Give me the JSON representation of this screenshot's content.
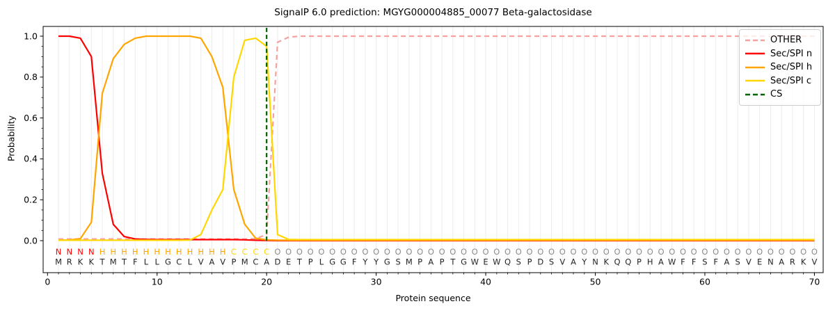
{
  "chart_data": {
    "type": "line",
    "title": "SignalP 6.0 prediction: MGYG000004885_00077 Beta-galactosidase",
    "xlabel": "Protein sequence",
    "ylabel": "Probability",
    "x_start": 1,
    "x_ticks": [
      0,
      10,
      20,
      30,
      40,
      50,
      60,
      70
    ],
    "y_ticks": [
      "0.0",
      "0.2",
      "0.4",
      "0.6",
      "0.8",
      "1.0"
    ],
    "xlim": [
      -0.4,
      70.8
    ],
    "ylim": [
      0.0,
      1.0
    ],
    "grid": "vertical-per-residue",
    "legend_position": "upper right",
    "cs_position": 20,
    "sequence": "MRKKTMTFLLGCLVAVPMCADETPLGGFYYGSMPAPTGWEWQSPDSVAYNKQQPHAWFFSFASVENARKV",
    "region_labels": "NNNNHHHHHHHHHHHHCCCCOOOOOOOOOOOOOOOOOOOOOOOOOOOOOOOOOOOOOOOOOOOOOOOOOO",
    "region_colors": {
      "N": "#ff0000",
      "H": "#ffa500",
      "C": "#ffd700",
      "O": "#8c8c8c"
    },
    "sequence_color": "#262626",
    "grid_color": "#ececec",
    "axis_color": "#000000",
    "series": [
      {
        "name": "OTHER",
        "color": "#f4a2a0",
        "dashed": true,
        "values": [
          0.008,
          0.008,
          0.008,
          0.008,
          0.008,
          0.008,
          0.008,
          0.008,
          0.008,
          0.008,
          0.008,
          0.008,
          0.008,
          0.008,
          0.008,
          0.008,
          0.008,
          0.008,
          0.01,
          0.03,
          0.97,
          0.995,
          1.0,
          1.0,
          1.0,
          1.0,
          1.0,
          1.0,
          1.0,
          1.0,
          1.0,
          1.0,
          1.0,
          1.0,
          1.0,
          1.0,
          1.0,
          1.0,
          1.0,
          1.0,
          1.0,
          1.0,
          1.0,
          1.0,
          1.0,
          1.0,
          1.0,
          1.0,
          1.0,
          1.0,
          1.0,
          1.0,
          1.0,
          1.0,
          1.0,
          1.0,
          1.0,
          1.0,
          1.0,
          1.0,
          1.0,
          1.0,
          1.0,
          1.0,
          1.0,
          1.0,
          1.0,
          1.0,
          1.0,
          1.0
        ]
      },
      {
        "name": "Sec/SPI n",
        "color": "#ff0000",
        "dashed": false,
        "values": [
          1.0,
          1.0,
          0.99,
          0.9,
          0.33,
          0.08,
          0.02,
          0.008,
          0.006,
          0.005,
          0.005,
          0.005,
          0.005,
          0.005,
          0.005,
          0.005,
          0.005,
          0.004,
          0.002,
          0.001,
          0.0,
          0.0,
          0.0,
          0.0,
          0.0,
          0.0,
          0.0,
          0.0,
          0.0,
          0.0,
          0.0,
          0.0,
          0.0,
          0.0,
          0.0,
          0.0,
          0.0,
          0.0,
          0.0,
          0.0,
          0.0,
          0.0,
          0.0,
          0.0,
          0.0,
          0.0,
          0.0,
          0.0,
          0.0,
          0.0,
          0.0,
          0.0,
          0.0,
          0.0,
          0.0,
          0.0,
          0.0,
          0.0,
          0.0,
          0.0,
          0.0,
          0.0,
          0.0,
          0.0,
          0.0,
          0.0,
          0.0,
          0.0,
          0.0,
          0.0
        ]
      },
      {
        "name": "Sec/SPI h",
        "color": "#ffa500",
        "dashed": false,
        "values": [
          0.002,
          0.003,
          0.01,
          0.09,
          0.72,
          0.89,
          0.96,
          0.99,
          1.0,
          1.0,
          1.0,
          1.0,
          1.0,
          0.99,
          0.9,
          0.75,
          0.25,
          0.08,
          0.012,
          0.004,
          0.002,
          0.002,
          0.002,
          0.002,
          0.002,
          0.002,
          0.002,
          0.002,
          0.002,
          0.002,
          0.002,
          0.002,
          0.002,
          0.002,
          0.002,
          0.002,
          0.002,
          0.002,
          0.002,
          0.002,
          0.002,
          0.002,
          0.002,
          0.002,
          0.002,
          0.002,
          0.002,
          0.002,
          0.002,
          0.002,
          0.002,
          0.002,
          0.002,
          0.002,
          0.002,
          0.002,
          0.002,
          0.002,
          0.002,
          0.002,
          0.002,
          0.002,
          0.002,
          0.002,
          0.002,
          0.002,
          0.002,
          0.002,
          0.002,
          0.002
        ]
      },
      {
        "name": "Sec/SPI c",
        "color": "#ffd700",
        "dashed": false,
        "values": [
          0.002,
          0.002,
          0.002,
          0.002,
          0.002,
          0.002,
          0.002,
          0.002,
          0.002,
          0.002,
          0.002,
          0.002,
          0.003,
          0.03,
          0.15,
          0.25,
          0.8,
          0.98,
          0.99,
          0.95,
          0.03,
          0.006,
          0.005,
          0.005,
          0.005,
          0.005,
          0.005,
          0.005,
          0.005,
          0.005,
          0.005,
          0.005,
          0.005,
          0.005,
          0.005,
          0.005,
          0.005,
          0.005,
          0.005,
          0.005,
          0.005,
          0.005,
          0.005,
          0.005,
          0.005,
          0.005,
          0.005,
          0.005,
          0.005,
          0.005,
          0.005,
          0.005,
          0.005,
          0.005,
          0.005,
          0.005,
          0.005,
          0.005,
          0.005,
          0.005,
          0.005,
          0.005,
          0.005,
          0.005,
          0.005,
          0.005,
          0.005,
          0.005,
          0.005,
          0.005
        ]
      }
    ],
    "cs_line": {
      "label": "CS",
      "color": "#006400",
      "dashed": true
    },
    "legend": [
      {
        "label": "OTHER",
        "color": "#f4a2a0",
        "dashed": true
      },
      {
        "label": "Sec/SPI n",
        "color": "#ff0000",
        "dashed": false
      },
      {
        "label": "Sec/SPI h",
        "color": "#ffa500",
        "dashed": false
      },
      {
        "label": "Sec/SPI c",
        "color": "#ffd700",
        "dashed": false
      },
      {
        "label": "CS",
        "color": "#006400",
        "dashed": true
      }
    ]
  }
}
